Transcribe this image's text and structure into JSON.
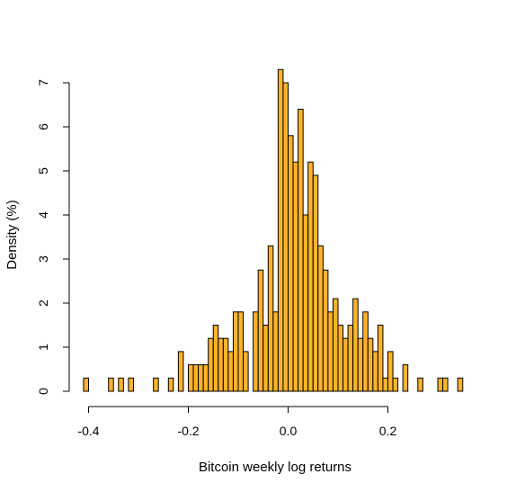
{
  "chart_data": {
    "type": "histogram",
    "title": "",
    "xlabel": "Bitcoin weekly log returns",
    "ylabel": "Density (%)",
    "xlim": [
      -0.41,
      0.35
    ],
    "ylim": [
      0,
      7.3
    ],
    "x_ticks": [
      -0.4,
      -0.2,
      0.0,
      0.2
    ],
    "x_tick_labels": [
      "-0.4",
      "-0.2",
      "0.0",
      "0.2"
    ],
    "y_ticks": [
      0,
      1,
      2,
      3,
      4,
      5,
      6,
      7
    ],
    "y_tick_labels": [
      "0",
      "1",
      "2",
      "3",
      "4",
      "5",
      "6",
      "7"
    ],
    "bin_width": 0.01,
    "bar_color": "#FDB32B",
    "bar_stroke": "#000000",
    "grid": false,
    "bins": [
      {
        "x0": -0.41,
        "density": 0.3
      },
      {
        "x0": -0.36,
        "density": 0.3
      },
      {
        "x0": -0.34,
        "density": 0.3
      },
      {
        "x0": -0.32,
        "density": 0.3
      },
      {
        "x0": -0.27,
        "density": 0.3
      },
      {
        "x0": -0.24,
        "density": 0.3
      },
      {
        "x0": -0.22,
        "density": 0.9
      },
      {
        "x0": -0.2,
        "density": 0.6
      },
      {
        "x0": -0.19,
        "density": 0.6
      },
      {
        "x0": -0.18,
        "density": 0.6
      },
      {
        "x0": -0.17,
        "density": 0.6
      },
      {
        "x0": -0.16,
        "density": 1.2
      },
      {
        "x0": -0.15,
        "density": 1.5
      },
      {
        "x0": -0.14,
        "density": 1.2
      },
      {
        "x0": -0.13,
        "density": 1.2
      },
      {
        "x0": -0.12,
        "density": 0.9
      },
      {
        "x0": -0.11,
        "density": 1.8
      },
      {
        "x0": -0.1,
        "density": 1.8
      },
      {
        "x0": -0.09,
        "density": 0.9
      },
      {
        "x0": -0.07,
        "density": 1.8
      },
      {
        "x0": -0.06,
        "density": 2.75
      },
      {
        "x0": -0.05,
        "density": 1.5
      },
      {
        "x0": -0.04,
        "density": 3.3
      },
      {
        "x0": -0.03,
        "density": 1.8
      },
      {
        "x0": -0.02,
        "density": 7.3
      },
      {
        "x0": -0.01,
        "density": 7.0
      },
      {
        "x0": 0.0,
        "density": 5.8
      },
      {
        "x0": 0.01,
        "density": 5.2
      },
      {
        "x0": 0.02,
        "density": 6.4
      },
      {
        "x0": 0.03,
        "density": 4.0
      },
      {
        "x0": 0.04,
        "density": 5.2
      },
      {
        "x0": 0.05,
        "density": 4.9
      },
      {
        "x0": 0.06,
        "density": 3.3
      },
      {
        "x0": 0.07,
        "density": 2.75
      },
      {
        "x0": 0.08,
        "density": 1.8
      },
      {
        "x0": 0.09,
        "density": 2.1
      },
      {
        "x0": 0.1,
        "density": 1.5
      },
      {
        "x0": 0.11,
        "density": 1.2
      },
      {
        "x0": 0.12,
        "density": 1.5
      },
      {
        "x0": 0.13,
        "density": 2.1
      },
      {
        "x0": 0.14,
        "density": 1.2
      },
      {
        "x0": 0.15,
        "density": 1.8
      },
      {
        "x0": 0.16,
        "density": 1.2
      },
      {
        "x0": 0.17,
        "density": 0.9
      },
      {
        "x0": 0.18,
        "density": 1.5
      },
      {
        "x0": 0.19,
        "density": 0.3
      },
      {
        "x0": 0.2,
        "density": 0.9
      },
      {
        "x0": 0.21,
        "density": 0.3
      },
      {
        "x0": 0.23,
        "density": 0.6
      },
      {
        "x0": 0.26,
        "density": 0.3
      },
      {
        "x0": 0.3,
        "density": 0.3
      },
      {
        "x0": 0.31,
        "density": 0.3
      },
      {
        "x0": 0.34,
        "density": 0.3
      }
    ]
  }
}
